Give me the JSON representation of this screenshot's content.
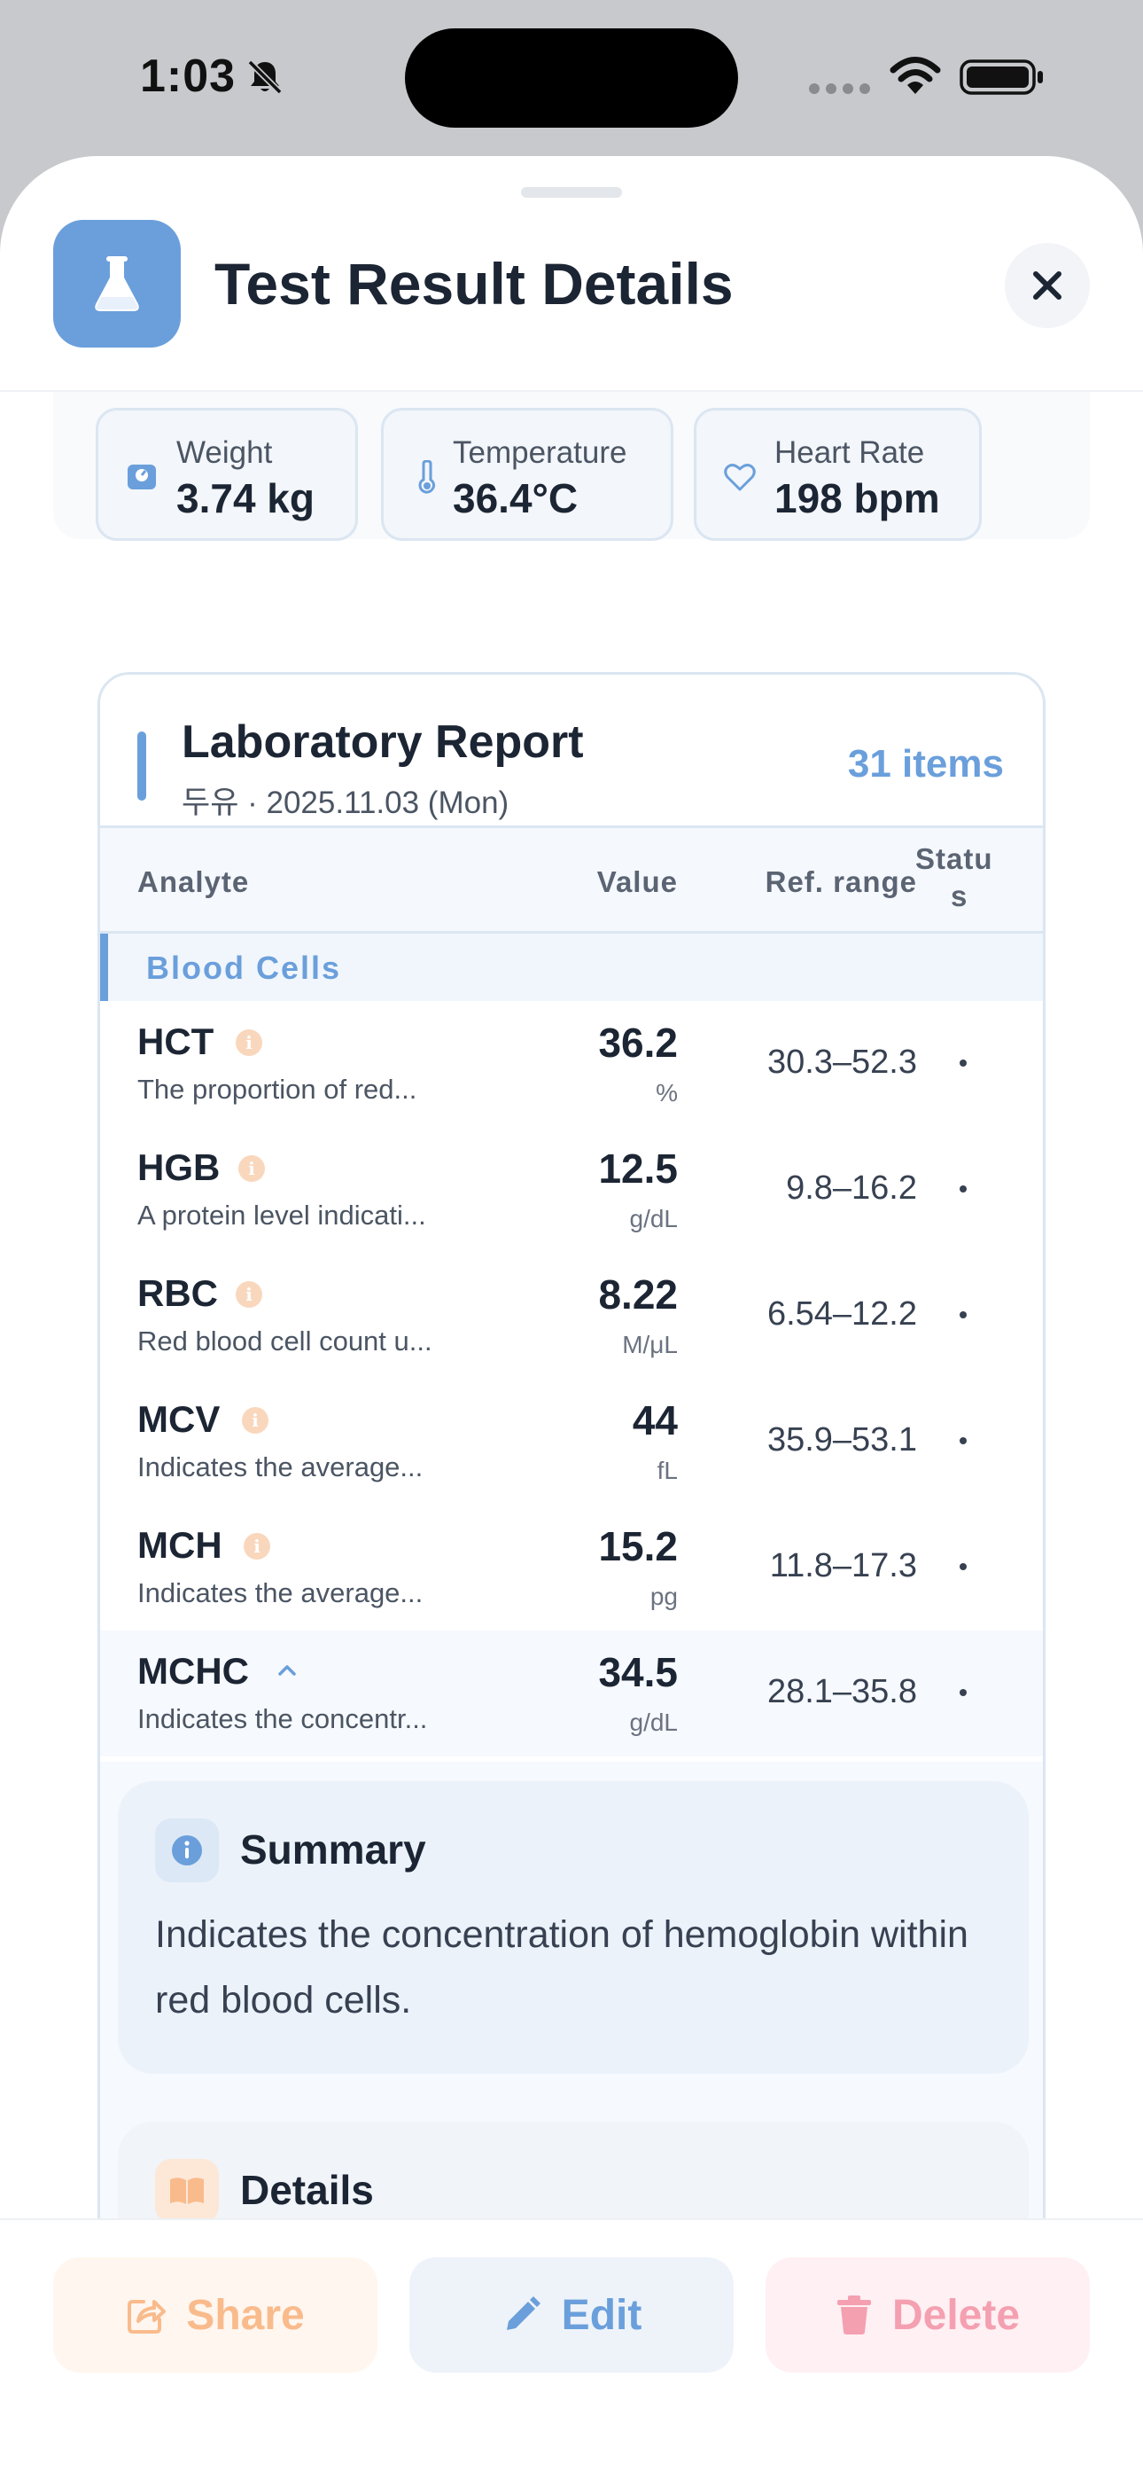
{
  "status_bar": {
    "time": "1:03"
  },
  "header": {
    "title": "Test Result Details",
    "icon": "flask-icon",
    "close_icon": "close-icon"
  },
  "vitals": [
    {
      "label": "Weight",
      "value": "3.74 kg",
      "icon": "scale-icon"
    },
    {
      "label": "Temperature",
      "value": "36.4°C",
      "icon": "thermometer-icon"
    },
    {
      "label": "Heart Rate",
      "value": "198 bpm",
      "icon": "heart-icon"
    }
  ],
  "report": {
    "title": "Laboratory Report",
    "subtitle": "두유 · 2025.11.03 (Mon)",
    "count": "31 items",
    "columns": {
      "analyte": "Analyte",
      "value": "Value",
      "range": "Ref. range",
      "status_line1": "Statu",
      "status_line2": "s"
    },
    "section": "Blood Cells",
    "rows": [
      {
        "name": "HCT",
        "desc": "The proportion of red...",
        "value": "36.2",
        "unit": "%",
        "range": "30.3–52.3"
      },
      {
        "name": "HGB",
        "desc": "A protein level indicati...",
        "value": "12.5",
        "unit": "g/dL",
        "range": "9.8–16.2"
      },
      {
        "name": "RBC",
        "desc": "Red blood cell count u...",
        "value": "8.22",
        "unit": "M/μL",
        "range": "6.54–12.2"
      },
      {
        "name": "MCV",
        "desc": "Indicates the average...",
        "value": "44",
        "unit": "fL",
        "range": "35.9–53.1"
      },
      {
        "name": "MCH",
        "desc": "Indicates the average...",
        "value": "15.2",
        "unit": "pg",
        "range": "11.8–17.3"
      },
      {
        "name": "MCHC",
        "desc": "Indicates the concentr...",
        "value": "34.5",
        "unit": "g/dL",
        "range": "28.1–35.8"
      }
    ],
    "summary": {
      "title": "Summary",
      "text": "Indicates the concentration of hemoglobin within red blood cells."
    },
    "details": {
      "title": "Details"
    }
  },
  "actions": {
    "share": "Share",
    "edit": "Edit",
    "delete": "Delete"
  },
  "colors": {
    "accent": "#6a9fdb",
    "share": "#f9bb8c",
    "delete": "#f4a0b1"
  }
}
